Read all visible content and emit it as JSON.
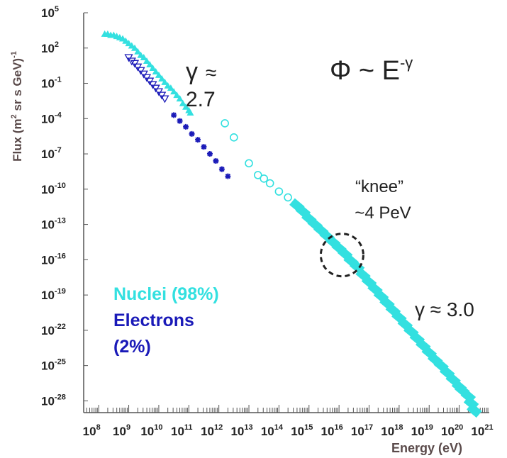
{
  "chart_data": {
    "type": "scatter",
    "xlabel": "Energy (eV)",
    "ylabel_main": "Flux (m",
    "ylabel_sup2": "2",
    "ylabel_rest": " sr s GeV)",
    "ylabel_supm1": "-1",
    "x_log_range": [
      7.5,
      21
    ],
    "y_log_range": [
      -29,
      5
    ],
    "x_tick_base": "10",
    "x_tick_exponents": [
      "8",
      "9",
      "10",
      "11",
      "12",
      "13",
      "14",
      "15",
      "16",
      "17",
      "18",
      "19",
      "20",
      "21"
    ],
    "y_tick_base": "10",
    "y_tick_exponents": [
      "5",
      "2",
      "-1",
      "-4",
      "-7",
      "-10",
      "-13",
      "-16",
      "-19",
      "-22",
      "-25",
      "-28"
    ],
    "series": [
      {
        "name": "Nuclei (98%)",
        "color": "#33e0e0",
        "points": [
          [
            8.2,
            3.2
          ],
          [
            8.3,
            3.2
          ],
          [
            8.4,
            3.1
          ],
          [
            8.5,
            3.1
          ],
          [
            8.6,
            3.0
          ],
          [
            8.7,
            2.9
          ],
          [
            8.8,
            2.8
          ],
          [
            8.9,
            2.6
          ],
          [
            9.0,
            2.4
          ],
          [
            9.1,
            2.2
          ],
          [
            9.2,
            2.0
          ],
          [
            9.3,
            1.7
          ],
          [
            9.4,
            1.4
          ],
          [
            9.5,
            1.2
          ],
          [
            9.6,
            0.9
          ],
          [
            9.7,
            0.6
          ],
          [
            9.8,
            0.3
          ],
          [
            9.9,
            0.0
          ],
          [
            10.0,
            -0.3
          ],
          [
            10.1,
            -0.6
          ],
          [
            10.2,
            -0.9
          ],
          [
            10.3,
            -1.2
          ],
          [
            10.4,
            -1.4
          ],
          [
            10.5,
            -1.7
          ],
          [
            10.6,
            -2.0
          ],
          [
            10.7,
            -2.3
          ],
          [
            10.8,
            -2.7
          ],
          [
            10.9,
            -3.0
          ],
          [
            11.0,
            -3.3
          ],
          [
            11.05,
            -3.5
          ],
          [
            12.2,
            -4.4
          ],
          [
            12.5,
            -5.6
          ],
          [
            13.0,
            -7.8
          ],
          [
            13.3,
            -8.8
          ],
          [
            13.5,
            -9.1
          ],
          [
            13.7,
            -9.5
          ],
          [
            14.0,
            -10.2
          ],
          [
            14.3,
            -10.7
          ],
          [
            14.6,
            -11.4
          ],
          [
            14.8,
            -11.9
          ],
          [
            15.0,
            -12.5
          ],
          [
            15.2,
            -13.0
          ],
          [
            15.4,
            -13.5
          ],
          [
            15.6,
            -14.0
          ],
          [
            15.8,
            -14.5
          ],
          [
            16.0,
            -15.0
          ],
          [
            16.2,
            -15.5
          ],
          [
            16.4,
            -16.1
          ],
          [
            16.6,
            -16.6
          ],
          [
            16.8,
            -17.3
          ],
          [
            17.0,
            -17.9
          ],
          [
            17.2,
            -18.5
          ],
          [
            17.4,
            -19.1
          ],
          [
            17.6,
            -19.7
          ],
          [
            17.8,
            -20.3
          ],
          [
            18.0,
            -20.9
          ],
          [
            18.2,
            -21.5
          ],
          [
            18.4,
            -22.1
          ],
          [
            18.6,
            -22.7
          ],
          [
            18.8,
            -23.3
          ],
          [
            19.0,
            -23.9
          ],
          [
            19.2,
            -24.5
          ],
          [
            19.4,
            -25.0
          ],
          [
            19.6,
            -25.6
          ],
          [
            19.8,
            -26.2
          ],
          [
            20.0,
            -26.8
          ],
          [
            20.1,
            -27.1
          ],
          [
            20.3,
            -27.6
          ],
          [
            20.4,
            -28.2
          ],
          [
            20.5,
            -28.8
          ]
        ]
      },
      {
        "name": "Electrons (2%)",
        "color": "#1a1ab8",
        "points": [
          [
            9.0,
            1.2
          ],
          [
            9.1,
            0.9
          ],
          [
            9.2,
            0.7
          ],
          [
            9.3,
            0.4
          ],
          [
            9.4,
            0.1
          ],
          [
            9.5,
            -0.2
          ],
          [
            9.6,
            -0.5
          ],
          [
            9.7,
            -0.8
          ],
          [
            9.8,
            -1.1
          ],
          [
            9.9,
            -1.4
          ],
          [
            10.0,
            -1.7
          ],
          [
            10.1,
            -2.0
          ],
          [
            10.2,
            -2.3
          ],
          [
            10.5,
            -3.7
          ],
          [
            10.7,
            -4.2
          ],
          [
            10.9,
            -4.7
          ],
          [
            11.1,
            -5.3
          ],
          [
            11.3,
            -5.8
          ],
          [
            11.5,
            -6.4
          ],
          [
            11.7,
            -7.0
          ],
          [
            11.9,
            -7.6
          ],
          [
            12.1,
            -8.3
          ],
          [
            12.3,
            -8.9
          ]
        ]
      }
    ],
    "legend": {
      "nuclei_label": "Nuclei (98%)",
      "electrons_line1": "Electrons",
      "electrons_line2": "(2%)"
    },
    "annotations": {
      "formula_main": "Φ ~ E",
      "formula_sup": "-γ",
      "gamma_low_symbol": "γ",
      "gamma_low_approx": "≈",
      "gamma_low_value": "2.7",
      "gamma_high": "γ  ≈ 3.0",
      "knee_line1": "“knee”",
      "knee_line2": "~4 PeV",
      "knee_center_log": [
        16.1,
        -15.6
      ]
    },
    "grid": false,
    "legend_position": "bottom-left"
  }
}
